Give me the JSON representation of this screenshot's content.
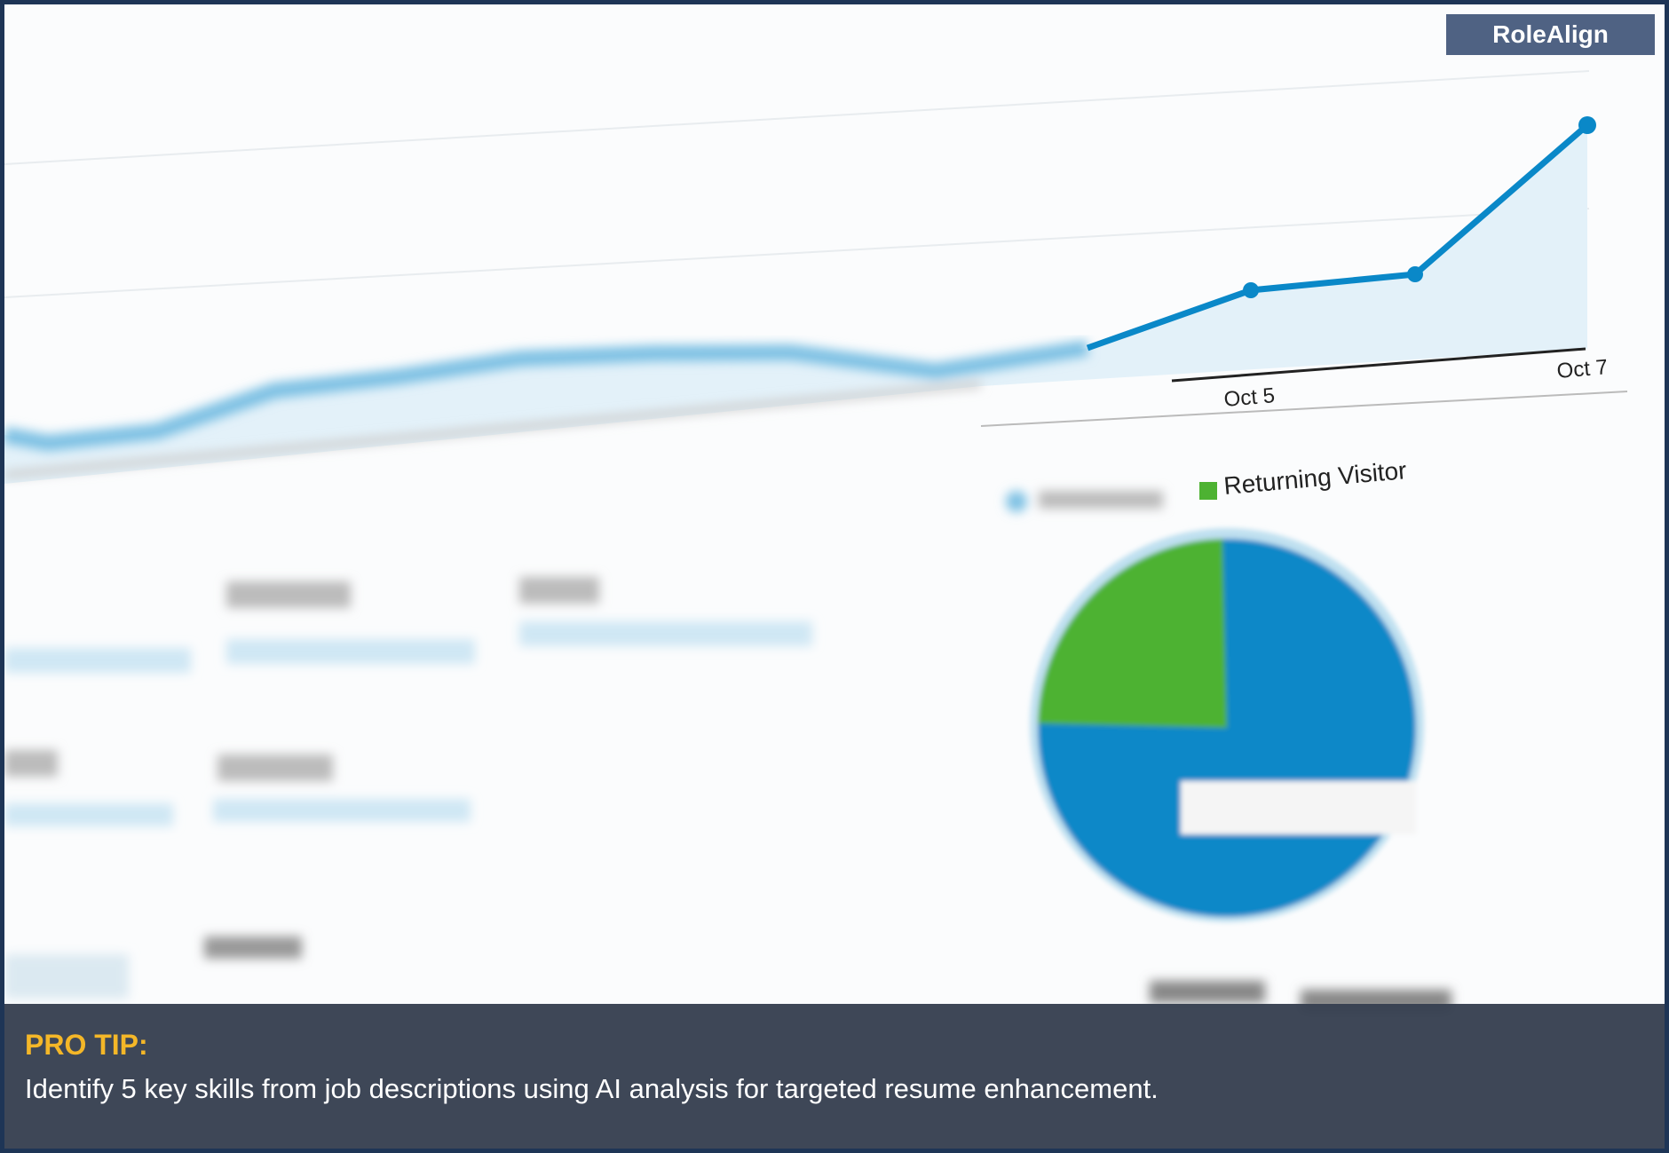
{
  "brand": {
    "name": "RoleAlign"
  },
  "chart": {
    "x_labels": [
      "Oct 5",
      "Oct 7"
    ],
    "legend": [
      "Returning Visitor"
    ],
    "colors": {
      "line": "#0a88c8",
      "returning": "#4db232",
      "new": "#0a88c8"
    }
  },
  "tip": {
    "title": "PRO TIP:",
    "text": "Identify 5 key skills from job descriptions using AI analysis for targeted resume enhancement."
  }
}
